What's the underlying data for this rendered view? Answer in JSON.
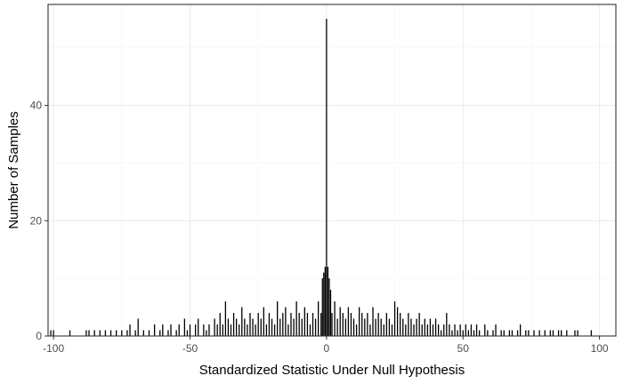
{
  "chart_data": {
    "type": "bar",
    "title": "",
    "xlabel": "Standardized Statistic Under Null Hypothesis",
    "ylabel": "Number of Samples",
    "xlim": [
      -102,
      106
    ],
    "ylim": [
      0,
      57.5
    ],
    "grid": true,
    "legend": "none",
    "x_ticks": [
      {
        "value": -100,
        "label": "-100"
      },
      {
        "value": -50,
        "label": "-50"
      },
      {
        "value": 0,
        "label": "0"
      },
      {
        "value": 50,
        "label": "50"
      },
      {
        "value": 100,
        "label": "100"
      }
    ],
    "y_ticks": [
      {
        "value": 0,
        "label": "0"
      },
      {
        "value": 20,
        "label": "20"
      },
      {
        "value": 40,
        "label": "40"
      }
    ],
    "bars": [
      {
        "x": -101,
        "y": 1
      },
      {
        "x": -100,
        "y": 1
      },
      {
        "x": -94,
        "y": 1
      },
      {
        "x": -88,
        "y": 1
      },
      {
        "x": -87,
        "y": 1
      },
      {
        "x": -85,
        "y": 1
      },
      {
        "x": -83,
        "y": 1
      },
      {
        "x": -81,
        "y": 1
      },
      {
        "x": -79,
        "y": 1
      },
      {
        "x": -77,
        "y": 1
      },
      {
        "x": -75,
        "y": 1
      },
      {
        "x": -73,
        "y": 1
      },
      {
        "x": -72,
        "y": 2
      },
      {
        "x": -70,
        "y": 1
      },
      {
        "x": -69,
        "y": 3
      },
      {
        "x": -67,
        "y": 1
      },
      {
        "x": -65,
        "y": 1
      },
      {
        "x": -63,
        "y": 2
      },
      {
        "x": -61,
        "y": 1
      },
      {
        "x": -60,
        "y": 2
      },
      {
        "x": -58,
        "y": 1
      },
      {
        "x": -57,
        "y": 2
      },
      {
        "x": -55,
        "y": 1
      },
      {
        "x": -54,
        "y": 2
      },
      {
        "x": -52,
        "y": 3
      },
      {
        "x": -51,
        "y": 1
      },
      {
        "x": -50,
        "y": 2
      },
      {
        "x": -48,
        "y": 2
      },
      {
        "x": -47,
        "y": 3
      },
      {
        "x": -45,
        "y": 2
      },
      {
        "x": -44,
        "y": 1
      },
      {
        "x": -43,
        "y": 2
      },
      {
        "x": -41,
        "y": 3
      },
      {
        "x": -40,
        "y": 2
      },
      {
        "x": -39,
        "y": 4
      },
      {
        "x": -38,
        "y": 2
      },
      {
        "x": -37,
        "y": 6
      },
      {
        "x": -36,
        "y": 3
      },
      {
        "x": -35,
        "y": 2
      },
      {
        "x": -34,
        "y": 4
      },
      {
        "x": -33,
        "y": 3
      },
      {
        "x": -32,
        "y": 2
      },
      {
        "x": -31,
        "y": 5
      },
      {
        "x": -30,
        "y": 3
      },
      {
        "x": -29,
        "y": 2
      },
      {
        "x": -28,
        "y": 4
      },
      {
        "x": -27,
        "y": 3
      },
      {
        "x": -26,
        "y": 2
      },
      {
        "x": -25,
        "y": 4
      },
      {
        "x": -24,
        "y": 3
      },
      {
        "x": -23,
        "y": 5
      },
      {
        "x": -22,
        "y": 2
      },
      {
        "x": -21,
        "y": 4
      },
      {
        "x": -20,
        "y": 3
      },
      {
        "x": -19,
        "y": 2
      },
      {
        "x": -18,
        "y": 6
      },
      {
        "x": -17,
        "y": 3
      },
      {
        "x": -16,
        "y": 4
      },
      {
        "x": -15,
        "y": 5
      },
      {
        "x": -14,
        "y": 2
      },
      {
        "x": -13,
        "y": 4
      },
      {
        "x": -12,
        "y": 3
      },
      {
        "x": -11,
        "y": 6
      },
      {
        "x": -10,
        "y": 4
      },
      {
        "x": -9,
        "y": 3
      },
      {
        "x": -8,
        "y": 5
      },
      {
        "x": -7,
        "y": 4
      },
      {
        "x": -6,
        "y": 2
      },
      {
        "x": -5,
        "y": 4
      },
      {
        "x": -4,
        "y": 3
      },
      {
        "x": -3,
        "y": 6
      },
      {
        "x": -2,
        "y": 4
      },
      {
        "x": -1.5,
        "y": 10
      },
      {
        "x": -1,
        "y": 11
      },
      {
        "x": -0.5,
        "y": 12
      },
      {
        "x": 0,
        "y": 55
      },
      {
        "x": 0.5,
        "y": 12
      },
      {
        "x": 1,
        "y": 10
      },
      {
        "x": 1.5,
        "y": 8
      },
      {
        "x": 2,
        "y": 4
      },
      {
        "x": 3,
        "y": 6
      },
      {
        "x": 4,
        "y": 3
      },
      {
        "x": 5,
        "y": 5
      },
      {
        "x": 6,
        "y": 4
      },
      {
        "x": 7,
        "y": 3
      },
      {
        "x": 8,
        "y": 5
      },
      {
        "x": 9,
        "y": 4
      },
      {
        "x": 10,
        "y": 3
      },
      {
        "x": 11,
        "y": 2
      },
      {
        "x": 12,
        "y": 5
      },
      {
        "x": 13,
        "y": 4
      },
      {
        "x": 14,
        "y": 3
      },
      {
        "x": 15,
        "y": 4
      },
      {
        "x": 16,
        "y": 2
      },
      {
        "x": 17,
        "y": 5
      },
      {
        "x": 18,
        "y": 3
      },
      {
        "x": 19,
        "y": 4
      },
      {
        "x": 20,
        "y": 3
      },
      {
        "x": 21,
        "y": 2
      },
      {
        "x": 22,
        "y": 4
      },
      {
        "x": 23,
        "y": 3
      },
      {
        "x": 24,
        "y": 2
      },
      {
        "x": 25,
        "y": 6
      },
      {
        "x": 26,
        "y": 5
      },
      {
        "x": 27,
        "y": 4
      },
      {
        "x": 28,
        "y": 3
      },
      {
        "x": 29,
        "y": 2
      },
      {
        "x": 30,
        "y": 4
      },
      {
        "x": 31,
        "y": 3
      },
      {
        "x": 32,
        "y": 2
      },
      {
        "x": 33,
        "y": 3
      },
      {
        "x": 34,
        "y": 4
      },
      {
        "x": 35,
        "y": 2
      },
      {
        "x": 36,
        "y": 3
      },
      {
        "x": 37,
        "y": 2
      },
      {
        "x": 38,
        "y": 3
      },
      {
        "x": 39,
        "y": 2
      },
      {
        "x": 40,
        "y": 3
      },
      {
        "x": 41,
        "y": 2
      },
      {
        "x": 42,
        "y": 1
      },
      {
        "x": 43,
        "y": 2
      },
      {
        "x": 44,
        "y": 4
      },
      {
        "x": 45,
        "y": 2
      },
      {
        "x": 46,
        "y": 1
      },
      {
        "x": 47,
        "y": 2
      },
      {
        "x": 48,
        "y": 1
      },
      {
        "x": 49,
        "y": 2
      },
      {
        "x": 50,
        "y": 1
      },
      {
        "x": 51,
        "y": 2
      },
      {
        "x": 52,
        "y": 1
      },
      {
        "x": 53,
        "y": 2
      },
      {
        "x": 54,
        "y": 1
      },
      {
        "x": 55,
        "y": 2
      },
      {
        "x": 56,
        "y": 1
      },
      {
        "x": 58,
        "y": 2
      },
      {
        "x": 59,
        "y": 1
      },
      {
        "x": 61,
        "y": 1
      },
      {
        "x": 62,
        "y": 2
      },
      {
        "x": 64,
        "y": 1
      },
      {
        "x": 65,
        "y": 1
      },
      {
        "x": 67,
        "y": 1
      },
      {
        "x": 68,
        "y": 1
      },
      {
        "x": 70,
        "y": 1
      },
      {
        "x": 71,
        "y": 2
      },
      {
        "x": 73,
        "y": 1
      },
      {
        "x": 74,
        "y": 1
      },
      {
        "x": 76,
        "y": 1
      },
      {
        "x": 78,
        "y": 1
      },
      {
        "x": 80,
        "y": 1
      },
      {
        "x": 82,
        "y": 1
      },
      {
        "x": 83,
        "y": 1
      },
      {
        "x": 85,
        "y": 1
      },
      {
        "x": 86,
        "y": 1
      },
      {
        "x": 88,
        "y": 1
      },
      {
        "x": 91,
        "y": 1
      },
      {
        "x": 92,
        "y": 1
      },
      {
        "x": 97,
        "y": 1
      }
    ]
  }
}
